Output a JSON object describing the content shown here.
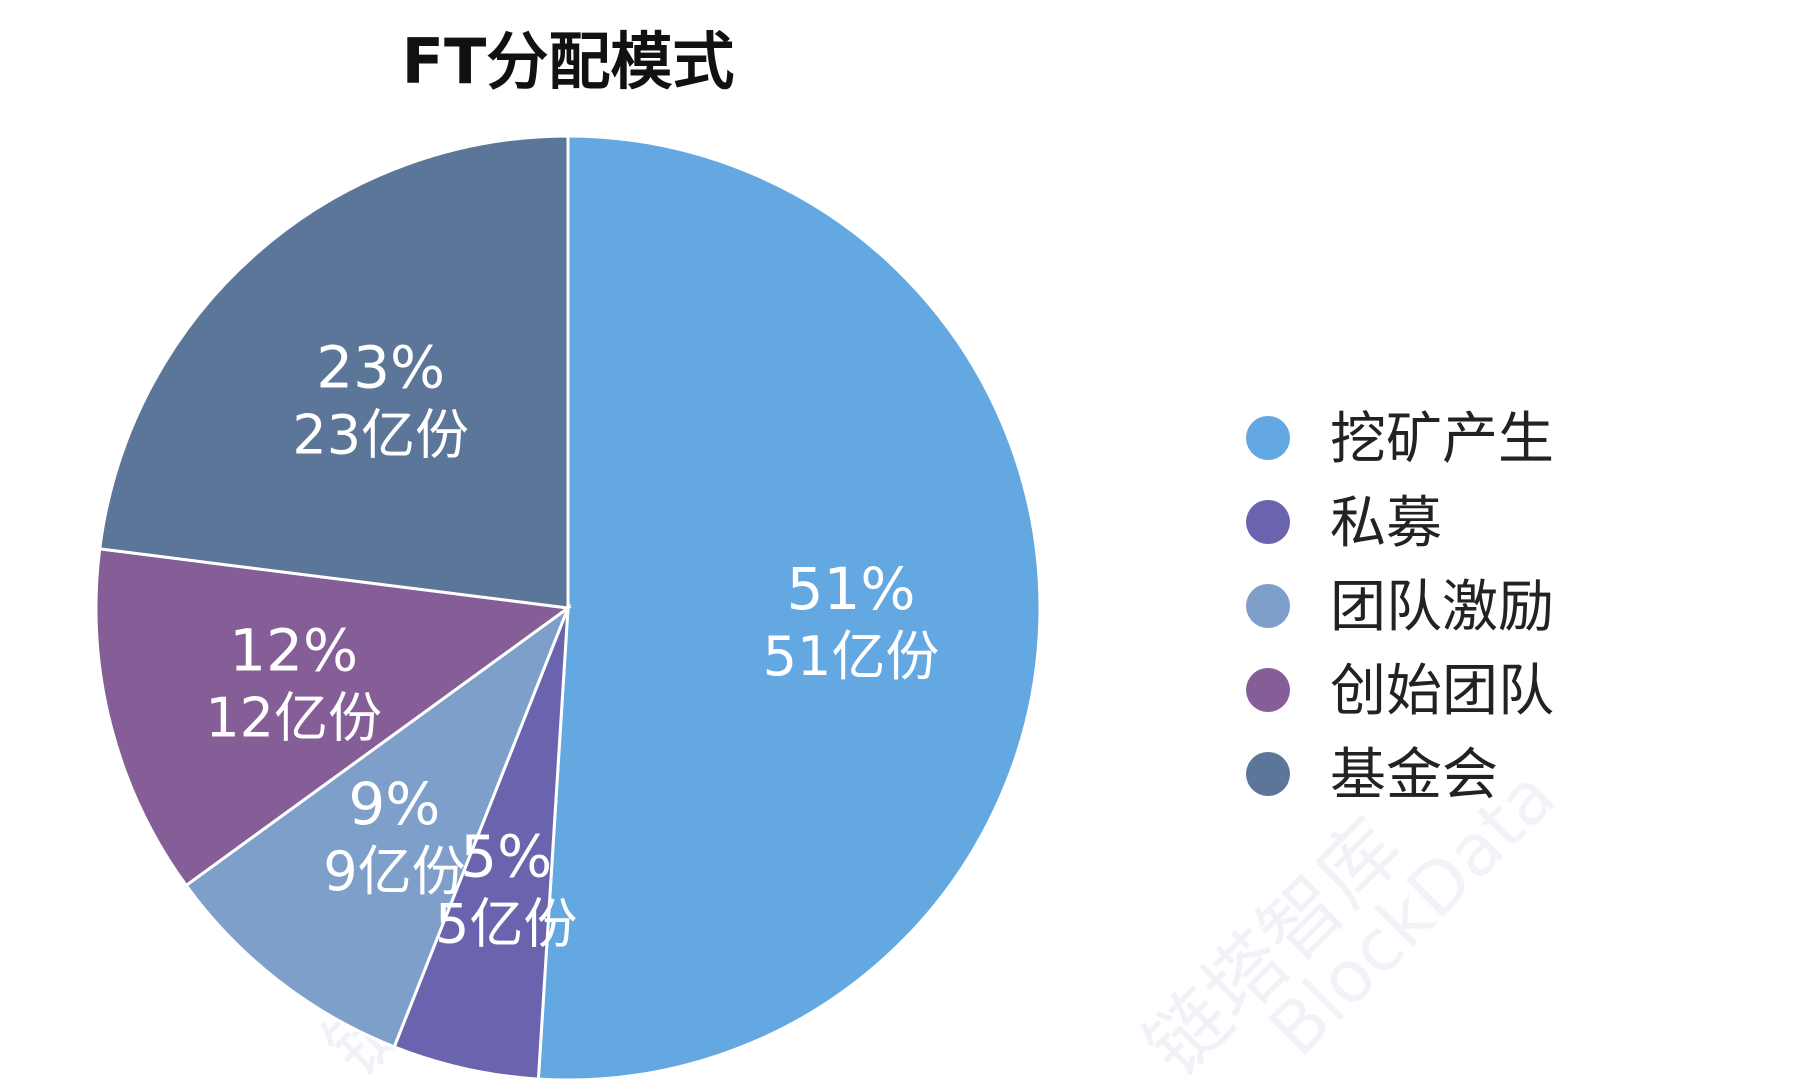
{
  "chart_data": {
    "type": "pie",
    "title": "FT分配模式",
    "slices": [
      {
        "name": "挖矿产生",
        "value": 51,
        "percent_label": "51%",
        "amount_label": "51亿份",
        "color": "#64a8e2"
      },
      {
        "name": "私募",
        "value": 5,
        "percent_label": "5%",
        "amount_label": "5亿份",
        "color": "#6a63ad"
      },
      {
        "name": "团队激励",
        "value": 9,
        "percent_label": "9%",
        "amount_label": "9亿份",
        "color": "#7f9fcb"
      },
      {
        "name": "创始团队",
        "value": 12,
        "percent_label": "12%",
        "amount_label": "12亿份",
        "color": "#865e97"
      },
      {
        "name": "基金会",
        "value": 23,
        "percent_label": "23%",
        "amount_label": "23亿份",
        "color": "#5c7699"
      }
    ],
    "start_angle_deg": 0,
    "direction": "clockwise",
    "legend_position": "right"
  },
  "watermark": {
    "text_cn": "链塔智库",
    "text_en": "BlockData"
  }
}
